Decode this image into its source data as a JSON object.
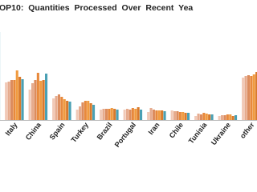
{
  "chart_data": {
    "type": "bar",
    "title": "OP10: Quantities Processed Over Recent Yea",
    "categories": [
      null,
      "Italy",
      "China",
      "Spain",
      "Turkey",
      "Brazil",
      "Portugal",
      "Iran",
      "Chile",
      "Tunisia",
      "Ukraine",
      "other"
    ],
    "ylim": [
      0,
      150
    ],
    "series": [
      {
        "color": "#f1c9b7",
        "values": [
          48,
          47,
          38,
          27,
          13,
          13,
          13,
          10,
          12,
          5,
          5,
          53
        ]
      },
      {
        "color": "#e6ab8e",
        "values": [
          49,
          48,
          46,
          30,
          17,
          14,
          14,
          15,
          11,
          8,
          6,
          55
        ]
      },
      {
        "color": "#dc8c5e",
        "values": [
          50,
          50,
          50,
          32,
          22,
          14,
          13,
          13,
          11,
          7,
          6,
          56
        ]
      },
      {
        "color": "#e8893c",
        "values": [
          52,
          50,
          59,
          29,
          24,
          14,
          15,
          12,
          10,
          9,
          7,
          55
        ]
      },
      {
        "color": "#f09b40",
        "values": [
          60,
          62,
          49,
          26,
          24,
          15,
          14,
          12,
          10,
          8,
          7,
          57
        ]
      },
      {
        "color": "#d97a2c",
        "values": [
          56,
          54,
          50,
          24,
          21,
          14,
          16,
          12,
          9,
          7,
          5,
          60
        ]
      },
      {
        "color": "#4aa0b4",
        "values": [
          110,
          51,
          58,
          23,
          19,
          13,
          13,
          11,
          9,
          7,
          6,
          60
        ]
      }
    ]
  }
}
